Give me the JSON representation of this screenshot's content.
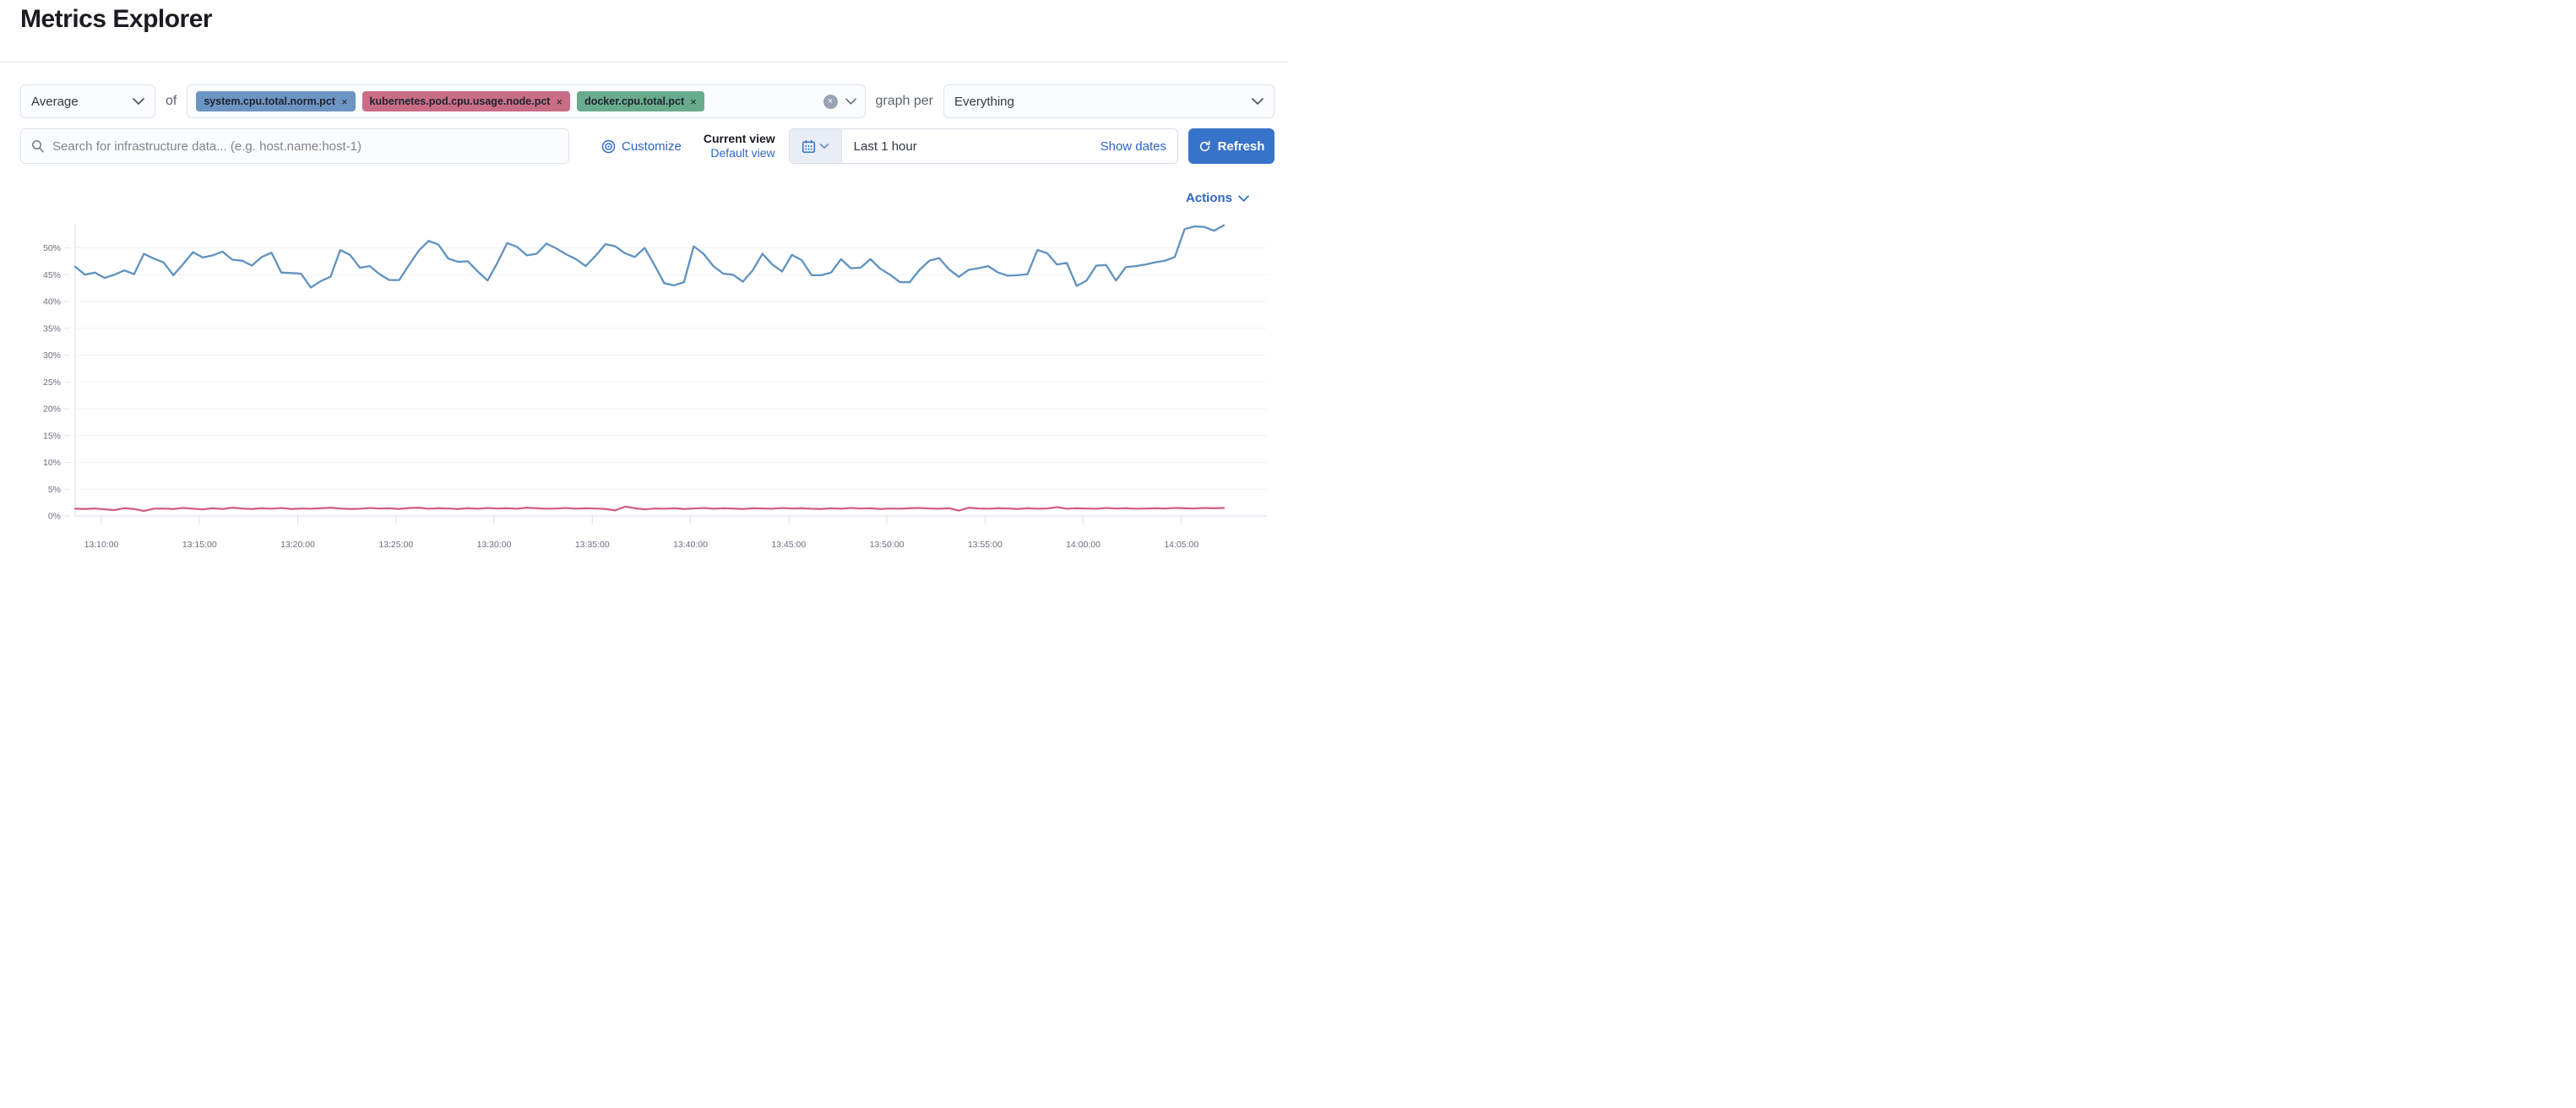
{
  "page": {
    "title": "Metrics Explorer"
  },
  "toolbar": {
    "aggregation": {
      "value": "Average"
    },
    "of_label": "of",
    "metrics": [
      {
        "label": "system.cpu.total.norm.pct",
        "remove_glyph": "×",
        "color": "#6d95c3"
      },
      {
        "label": "kubernetes.pod.cpu.usage.node.pct",
        "remove_glyph": "×",
        "color": "#c96d87"
      },
      {
        "label": "docker.cpu.total.pct",
        "remove_glyph": "×",
        "color": "#69ab8d"
      }
    ],
    "clear_glyph": "×",
    "graph_per_label": "graph per",
    "group_by": {
      "value": "Everything"
    }
  },
  "search": {
    "placeholder": "Search for infrastructure data... (e.g. host.name:host-1)"
  },
  "view_controls": {
    "customize_label": "Customize",
    "current_view_label": "Current view",
    "default_view_label": "Default view"
  },
  "time_picker": {
    "range_label": "Last 1 hour",
    "show_dates_label": "Show dates",
    "refresh_label": "Refresh"
  },
  "actions": {
    "label": "Actions"
  },
  "icons": {
    "search": "magnifier",
    "customize": "bullseye-eye",
    "calendar": "calendar",
    "clear": "circled-x",
    "chevron": "chevron-down",
    "refresh": "refresh-arrow"
  },
  "colors": {
    "link_blue": "#2c66c7",
    "button_blue": "#3873ca",
    "series_blue": "#6092C0",
    "series_pink": "#D36086",
    "badge_blue": "#6d95c3",
    "badge_pink": "#c96d87",
    "badge_green": "#69ab8d"
  },
  "chart_data": {
    "type": "line",
    "title": "",
    "xlabel": "",
    "ylabel": "",
    "ylim": [
      0,
      55
    ],
    "y_ticks": [
      0,
      5,
      10,
      15,
      20,
      25,
      30,
      35,
      40,
      45,
      50
    ],
    "y_tick_format": "percent",
    "grid": "horizontal-faint",
    "legend": "none",
    "x_tick_labels": [
      "13:10:00",
      "13:15:00",
      "13:20:00",
      "13:25:00",
      "13:30:00",
      "13:35:00",
      "13:40:00",
      "13:45:00",
      "13:50:00",
      "13:55:00",
      "14:00:00",
      "14:05:00"
    ],
    "x_start_label": "13:08:40",
    "interval_seconds": 30,
    "series": [
      {
        "name": "system.cpu.total.norm.pct",
        "color": "#6092C0",
        "values": [
          46.5,
          45.0,
          45.4,
          44.4,
          45.0,
          45.8,
          45.1,
          48.9,
          48.0,
          47.3,
          44.9,
          47.0,
          49.2,
          48.2,
          48.6,
          49.3,
          47.8,
          47.6,
          46.7,
          48.3,
          49.1,
          45.4,
          45.3,
          45.2,
          42.6,
          43.8,
          44.6,
          49.6,
          48.7,
          46.3,
          46.6,
          45.1,
          44.0,
          44.0,
          46.8,
          49.5,
          51.3,
          50.6,
          48.0,
          47.4,
          47.5,
          45.6,
          43.9,
          47.2,
          50.9,
          50.2,
          48.6,
          48.9,
          50.8,
          49.9,
          48.8,
          47.9,
          46.6,
          48.5,
          50.7,
          50.3,
          49.0,
          48.3,
          50.0,
          46.8,
          43.4,
          43.0,
          43.6,
          50.3,
          48.9,
          46.6,
          45.2,
          45.0,
          43.7,
          45.8,
          48.9,
          46.9,
          45.6,
          48.7,
          47.7,
          44.9,
          44.9,
          45.4,
          47.9,
          46.2,
          46.3,
          47.9,
          46.1,
          45.0,
          43.6,
          43.6,
          45.9,
          47.6,
          48.1,
          46.0,
          44.6,
          45.9,
          46.2,
          46.6,
          45.4,
          44.8,
          44.9,
          45.1,
          49.6,
          49.0,
          46.9,
          47.2,
          42.9,
          43.9,
          46.7,
          46.8,
          43.9,
          46.4,
          46.6,
          46.9,
          47.3,
          47.6,
          48.3,
          53.5,
          54.0,
          53.9,
          53.2,
          54.2
        ]
      },
      {
        "name": "kubernetes.pod.cpu.usage.node.pct",
        "color": "#D36086",
        "values": [
          1.35,
          1.3,
          1.4,
          1.25,
          1.1,
          1.45,
          1.3,
          0.95,
          1.35,
          1.4,
          1.3,
          1.5,
          1.35,
          1.25,
          1.45,
          1.3,
          1.55,
          1.4,
          1.3,
          1.45,
          1.35,
          1.5,
          1.3,
          1.4,
          1.35,
          1.45,
          1.55,
          1.4,
          1.3,
          1.35,
          1.5,
          1.4,
          1.45,
          1.3,
          1.5,
          1.55,
          1.35,
          1.45,
          1.4,
          1.3,
          1.45,
          1.35,
          1.5,
          1.4,
          1.45,
          1.35,
          1.55,
          1.45,
          1.35,
          1.4,
          1.5,
          1.35,
          1.45,
          1.4,
          1.3,
          1.05,
          1.75,
          1.45,
          1.25,
          1.4,
          1.35,
          1.45,
          1.3,
          1.4,
          1.5,
          1.35,
          1.45,
          1.4,
          1.3,
          1.45,
          1.4,
          1.35,
          1.5,
          1.4,
          1.45,
          1.35,
          1.3,
          1.45,
          1.35,
          1.5,
          1.4,
          1.45,
          1.3,
          1.4,
          1.35,
          1.45,
          1.5,
          1.4,
          1.35,
          1.45,
          1.0,
          1.55,
          1.4,
          1.35,
          1.45,
          1.4,
          1.3,
          1.45,
          1.35,
          1.4,
          1.65,
          1.35,
          1.45,
          1.4,
          1.35,
          1.5,
          1.4,
          1.45,
          1.35,
          1.4,
          1.45,
          1.4,
          1.5,
          1.45,
          1.4,
          1.5,
          1.45,
          1.5
        ]
      }
    ]
  }
}
